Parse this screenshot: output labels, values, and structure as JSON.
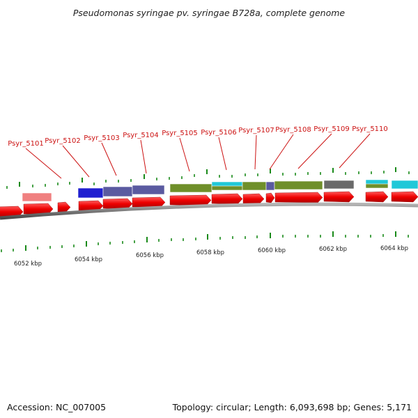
{
  "title": "Pseudomonas syringae pv. syringae B728a, complete genome",
  "gene_labels": [
    "Psyr_5101",
    "Psyr_5102",
    "Psyr_5103",
    "Psyr_5104",
    "Psyr_5105",
    "Psyr_5106",
    "Psyr_5107",
    "Psyr_5108",
    "Psyr_5109",
    "Psyr_5110"
  ],
  "scale_labels": [
    "6052 kbp",
    "6054 kbp",
    "6056 kbp",
    "6058 kbp",
    "6060 kbp",
    "6062 kbp",
    "6064 kbp"
  ],
  "footer": {
    "accession": "Accession: NC_007005",
    "summary": "Topology: circular; Length: 6,093,698 bp; Genes: 5,171"
  },
  "colors": {
    "gene_arrow": "#ff0000",
    "label": "#cc1111",
    "backbone": "#8c8c8c",
    "tick": "#1a8a1a",
    "cog_pink": "#f08080",
    "cog_blue": "#2020d0",
    "cog_slate": "#5a5aa0",
    "cog_olive": "#6f8f2a",
    "cog_cyan": "#20c8d8",
    "cog_gray": "#6a6a6a"
  }
}
